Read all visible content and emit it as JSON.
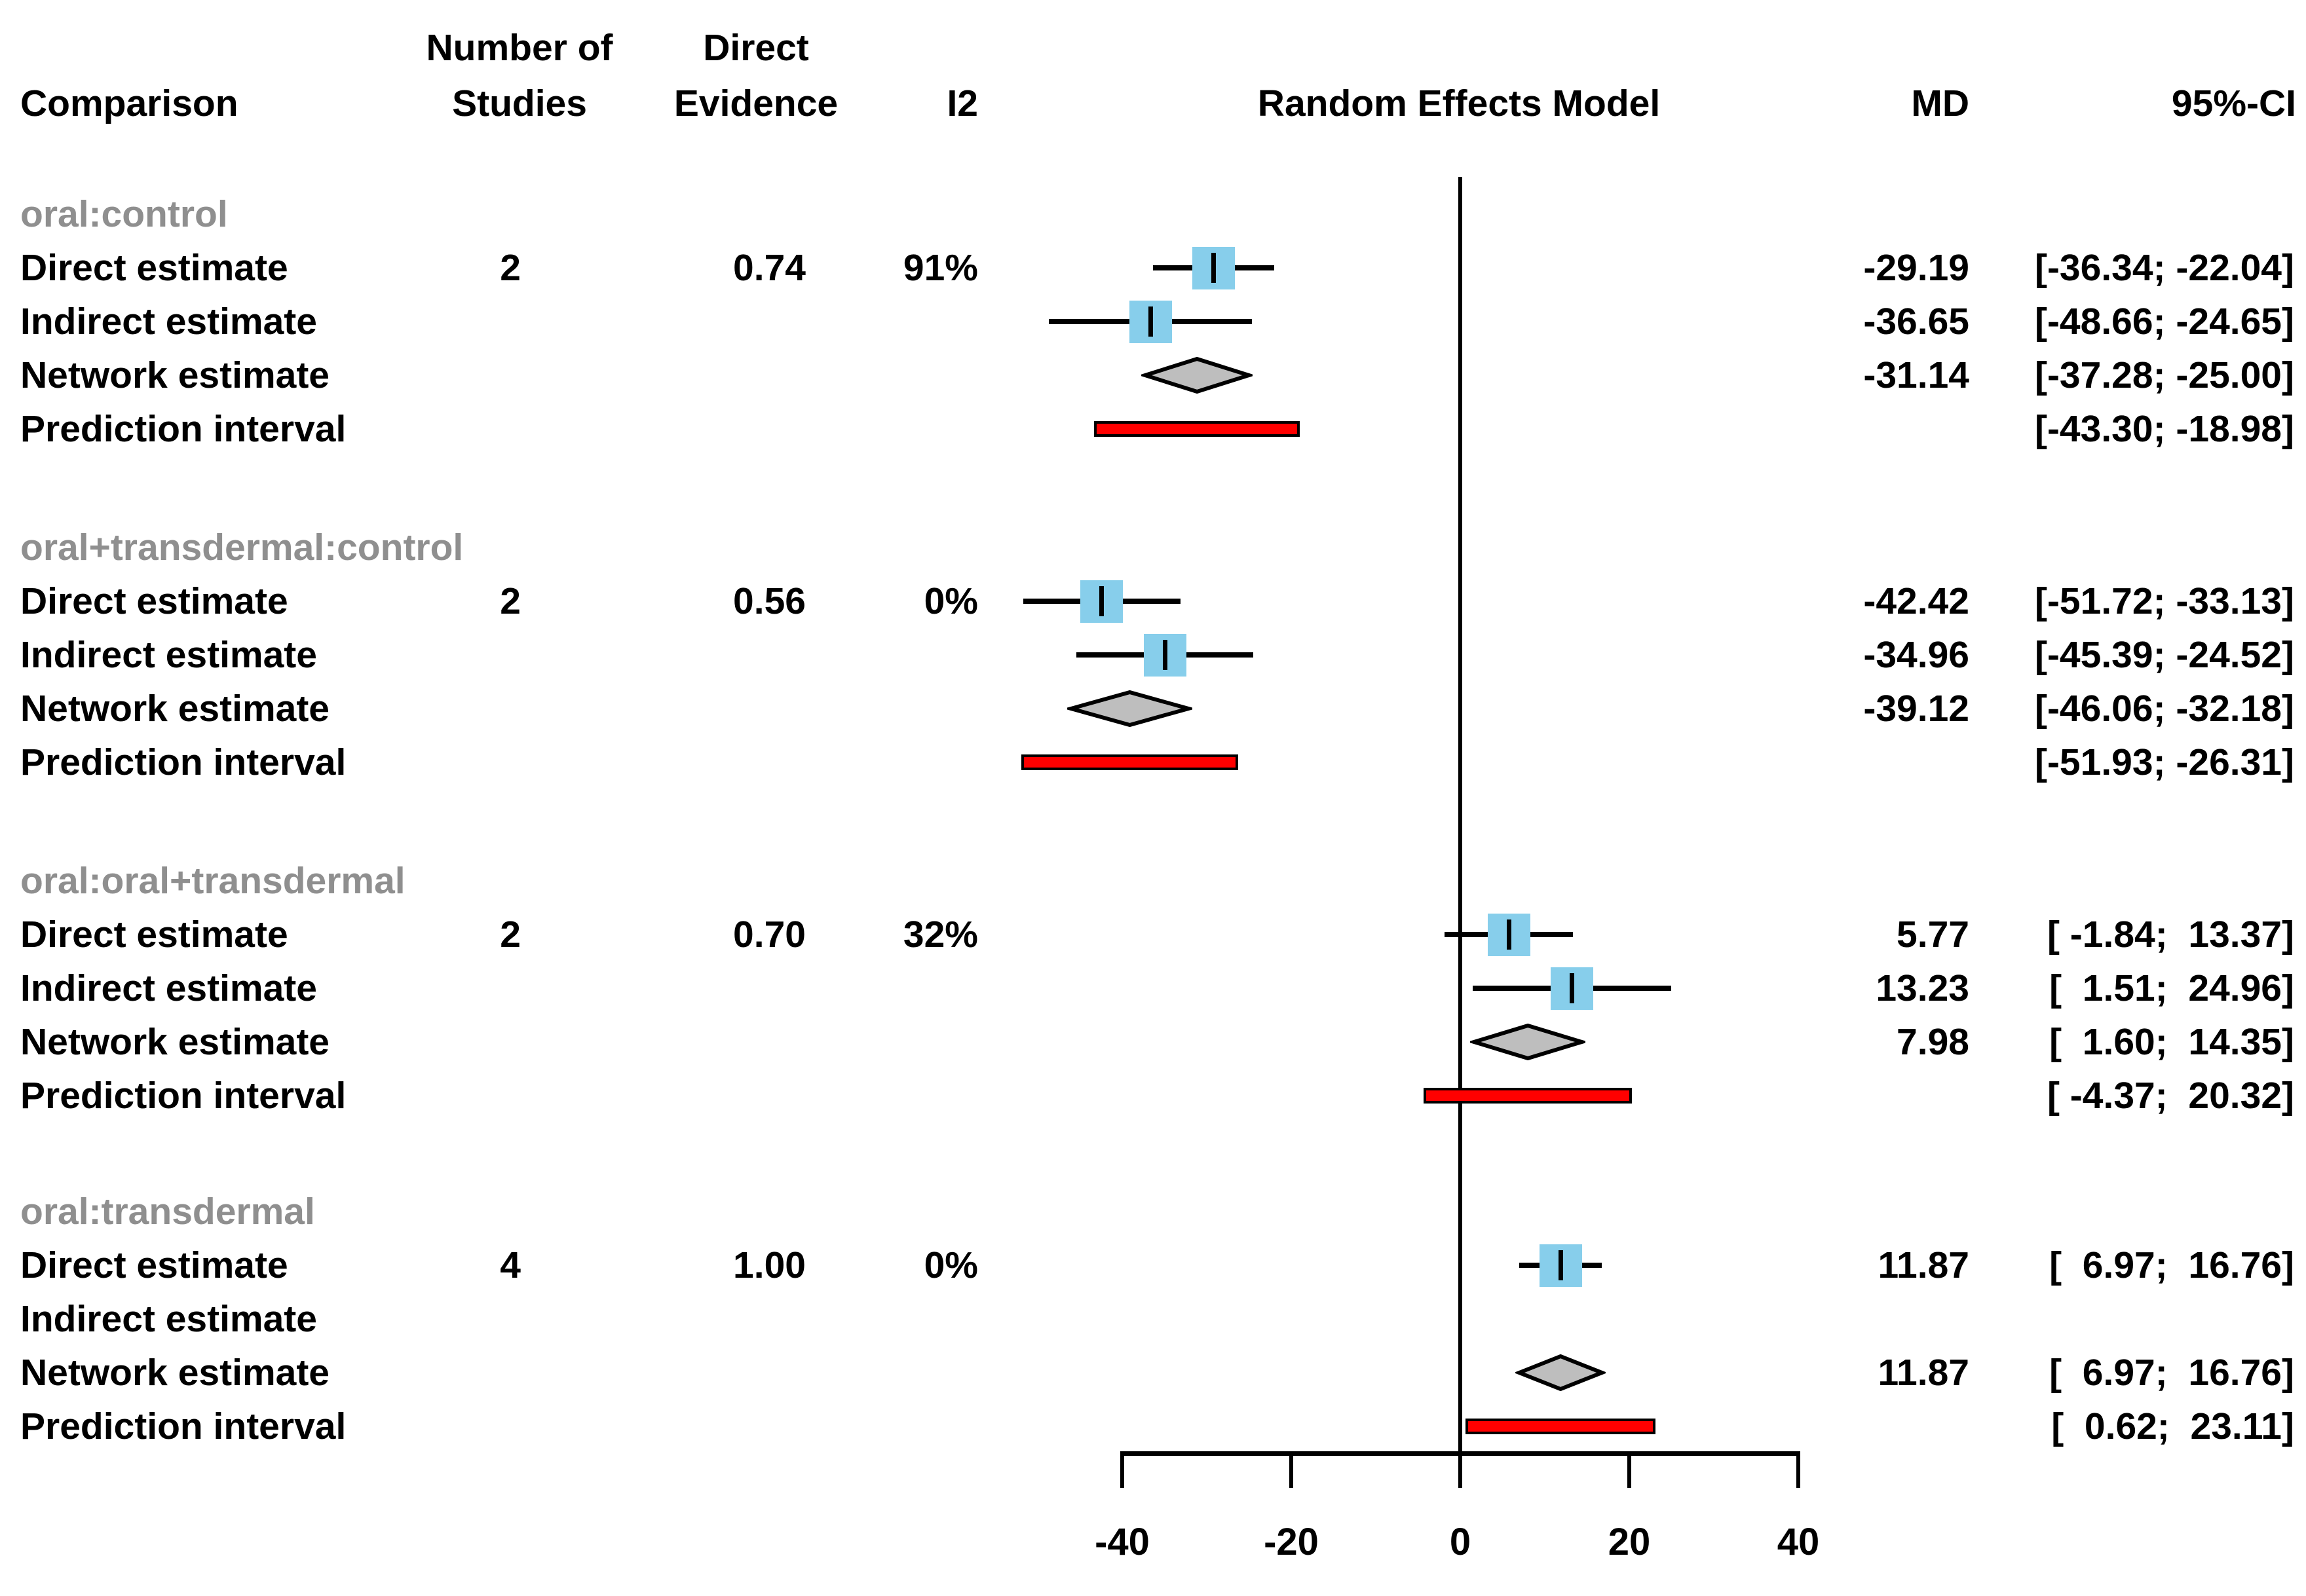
{
  "header": {
    "comparison": "Comparison",
    "studies_line1": "Number of",
    "studies_line2": "Studies",
    "evidence_line1": "Direct",
    "evidence_line2": "Evidence",
    "i2": "I2",
    "plot_title": "Random Effects Model",
    "md": "MD",
    "ci": "95%-CI"
  },
  "colors": {
    "square": "#87CEEB",
    "diamond_fill": "#BEBEBE",
    "diamond_border": "#000000",
    "prediction_fill": "#FF0000",
    "prediction_border": "#000000",
    "group_label": "#8F8F8F",
    "text": "#000000",
    "line": "#000000"
  },
  "chart_data": {
    "type": "forest",
    "title": "Random Effects Model",
    "effect_measure": "MD",
    "ci_level_label": "95%-CI",
    "x_axis": {
      "ticks": [
        -40,
        -20,
        0,
        20,
        40
      ],
      "tick_labels": [
        "-40",
        "-20",
        "0",
        "20",
        "40"
      ],
      "min": -40,
      "max": 40,
      "zero_reference_line": 0
    },
    "groups": [
      {
        "comparison": "oral:control",
        "rows": [
          {
            "label": "Direct estimate",
            "studies": "2",
            "evidence": "0.74",
            "i2": "91%",
            "marker": "square",
            "md": -29.19,
            "lo": -36.34,
            "hi": -22.04,
            "md_text": "-29.19",
            "ci_text": "[-36.34; -22.04]"
          },
          {
            "label": "Indirect estimate",
            "studies": "",
            "evidence": "",
            "i2": "",
            "marker": "square",
            "md": -36.65,
            "lo": -48.66,
            "hi": -24.65,
            "md_text": "-36.65",
            "ci_text": "[-48.66; -24.65]"
          },
          {
            "label": "Network estimate",
            "studies": "",
            "evidence": "",
            "i2": "",
            "marker": "diamond",
            "md": -31.14,
            "lo": -37.28,
            "hi": -25.0,
            "md_text": "-31.14",
            "ci_text": "[-37.28; -25.00]"
          },
          {
            "label": "Prediction interval",
            "studies": "",
            "evidence": "",
            "i2": "",
            "marker": "bar",
            "md": null,
            "lo": -43.3,
            "hi": -18.98,
            "md_text": "",
            "ci_text": "[-43.30; -18.98]"
          }
        ]
      },
      {
        "comparison": "oral+transdermal:control",
        "rows": [
          {
            "label": "Direct estimate",
            "studies": "2",
            "evidence": "0.56",
            "i2": "0%",
            "marker": "square",
            "md": -42.42,
            "lo": -51.72,
            "hi": -33.13,
            "md_text": "-42.42",
            "ci_text": "[-51.72; -33.13]"
          },
          {
            "label": "Indirect estimate",
            "studies": "",
            "evidence": "",
            "i2": "",
            "marker": "square",
            "md": -34.96,
            "lo": -45.39,
            "hi": -24.52,
            "md_text": "-34.96",
            "ci_text": "[-45.39; -24.52]"
          },
          {
            "label": "Network estimate",
            "studies": "",
            "evidence": "",
            "i2": "",
            "marker": "diamond",
            "md": -39.12,
            "lo": -46.06,
            "hi": -32.18,
            "md_text": "-39.12",
            "ci_text": "[-46.06; -32.18]"
          },
          {
            "label": "Prediction interval",
            "studies": "",
            "evidence": "",
            "i2": "",
            "marker": "bar",
            "md": null,
            "lo": -51.93,
            "hi": -26.31,
            "md_text": "",
            "ci_text": "[-51.93; -26.31]"
          }
        ]
      },
      {
        "comparison": "oral:oral+transdermal",
        "rows": [
          {
            "label": "Direct estimate",
            "studies": "2",
            "evidence": "0.70",
            "i2": "32%",
            "marker": "square",
            "md": 5.77,
            "lo": -1.84,
            "hi": 13.37,
            "md_text": "5.77",
            "ci_text": "[ -1.84;  13.37]"
          },
          {
            "label": "Indirect estimate",
            "studies": "",
            "evidence": "",
            "i2": "",
            "marker": "square",
            "md": 13.23,
            "lo": 1.51,
            "hi": 24.96,
            "md_text": "13.23",
            "ci_text": "[  1.51;  24.96]"
          },
          {
            "label": "Network estimate",
            "studies": "",
            "evidence": "",
            "i2": "",
            "marker": "diamond",
            "md": 7.98,
            "lo": 1.6,
            "hi": 14.35,
            "md_text": "7.98",
            "ci_text": "[  1.60;  14.35]"
          },
          {
            "label": "Prediction interval",
            "studies": "",
            "evidence": "",
            "i2": "",
            "marker": "bar",
            "md": null,
            "lo": -4.37,
            "hi": 20.32,
            "md_text": "",
            "ci_text": "[ -4.37;  20.32]"
          }
        ]
      },
      {
        "comparison": "oral:transdermal",
        "rows": [
          {
            "label": "Direct estimate",
            "studies": "4",
            "evidence": "1.00",
            "i2": "0%",
            "marker": "square",
            "md": 11.87,
            "lo": 6.97,
            "hi": 16.76,
            "md_text": "11.87",
            "ci_text": "[  6.97;  16.76]"
          },
          {
            "label": "Indirect estimate",
            "studies": "",
            "evidence": "",
            "i2": "",
            "marker": "none",
            "md": null,
            "lo": null,
            "hi": null,
            "md_text": "",
            "ci_text": ""
          },
          {
            "label": "Network estimate",
            "studies": "",
            "evidence": "",
            "i2": "",
            "marker": "diamond",
            "md": 11.87,
            "lo": 6.97,
            "hi": 16.76,
            "md_text": "11.87",
            "ci_text": "[  6.97;  16.76]"
          },
          {
            "label": "Prediction interval",
            "studies": "",
            "evidence": "",
            "i2": "",
            "marker": "bar",
            "md": null,
            "lo": 0.62,
            "hi": 23.11,
            "md_text": "",
            "ci_text": "[  0.62;  23.11]"
          }
        ]
      }
    ]
  }
}
